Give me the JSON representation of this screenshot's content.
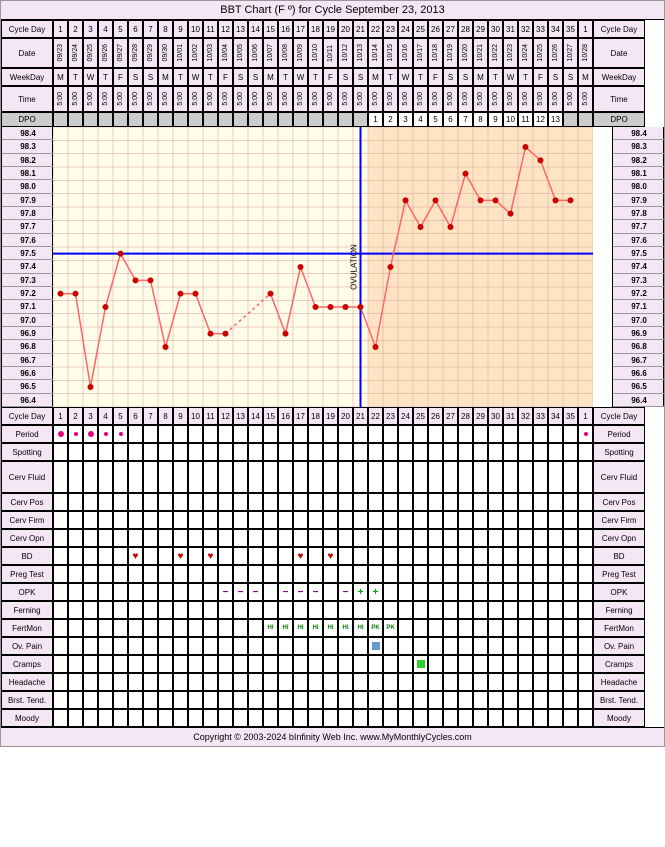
{
  "title": "BBT Chart (F º) for Cycle September 23, 2013",
  "footer": "Copyright © 2003-2024 bInfinity Web Inc.    www.MyMonthlyCycles.com",
  "labels": {
    "cycleday": "Cycle Day",
    "date": "Date",
    "weekday": "WeekDay",
    "time": "Time",
    "dpo": "DPO",
    "period": "Period",
    "spotting": "Spotting",
    "cervfluid": "Cerv Fluid",
    "cervpos": "Cerv Pos",
    "cervfirm": "Cerv Firm",
    "cervopn": "Cerv Opn",
    "bd": "BD",
    "pregtest": "Preg Test",
    "opk": "OPK",
    "ferning": "Ferning",
    "fertmon": "FertMon",
    "ovpain": "Ov. Pain",
    "cramps": "Cramps",
    "headache": "Headache",
    "brsttend": "Brst. Tend.",
    "moody": "Moody",
    "ovulation": "OVULATION"
  },
  "cycleDays": [
    1,
    2,
    3,
    4,
    5,
    6,
    7,
    8,
    9,
    10,
    11,
    12,
    13,
    14,
    15,
    16,
    17,
    18,
    19,
    20,
    21,
    22,
    23,
    24,
    25,
    26,
    27,
    28,
    29,
    30,
    31,
    32,
    33,
    34,
    35,
    1
  ],
  "dates": [
    "09/23",
    "09/24",
    "09/25",
    "09/26",
    "09/27",
    "09/28",
    "09/29",
    "09/30",
    "10/01",
    "10/02",
    "10/03",
    "10/04",
    "10/05",
    "10/06",
    "10/07",
    "10/08",
    "10/09",
    "10/10",
    "10/11",
    "10/12",
    "10/13",
    "10/14",
    "10/15",
    "10/16",
    "10/17",
    "10/18",
    "10/19",
    "10/20",
    "10/21",
    "10/22",
    "10/23",
    "10/24",
    "10/25",
    "10/26",
    "10/27",
    "10/28"
  ],
  "weekdays": [
    "M",
    "T",
    "W",
    "T",
    "F",
    "S",
    "S",
    "M",
    "T",
    "W",
    "T",
    "F",
    "S",
    "S",
    "M",
    "T",
    "W",
    "T",
    "F",
    "S",
    "S",
    "M",
    "T",
    "W",
    "T",
    "F",
    "S",
    "S",
    "M",
    "T",
    "W",
    "T",
    "F",
    "S",
    "S",
    "M"
  ],
  "times": [
    "5:00",
    "5:00",
    "5:00",
    "5:00",
    "5:00",
    "5:00",
    "5:00",
    "5:00",
    "5:00",
    "5:00",
    "5:00",
    "5:00",
    "5:00",
    "5:00",
    "5:00",
    "5:00",
    "5:00",
    "5:00",
    "5:00",
    "5:00",
    "5:00",
    "5:00",
    "5:00",
    "5:00",
    "5:00",
    "5:00",
    "5:00",
    "5:00",
    "5:00",
    "5:00",
    "5:00",
    "5:00",
    "5:00",
    "5:00",
    "5:00",
    "5:00"
  ],
  "dpo": [
    "",
    "",
    "",
    "",
    "",
    "",
    "",
    "",
    "",
    "",
    "",
    "",
    "",
    "",
    "",
    "",
    "",
    "",
    "",
    "",
    "",
    "1",
    "2",
    "3",
    "4",
    "5",
    "6",
    "7",
    "8",
    "9",
    "10",
    "11",
    "12",
    "13",
    "",
    ""
  ],
  "chart": {
    "ylabels": [
      98.4,
      98.3,
      98.2,
      98.1,
      98.0,
      97.9,
      97.8,
      97.7,
      97.6,
      97.5,
      97.4,
      97.3,
      97.2,
      97.1,
      97.0,
      96.9,
      96.8,
      96.7,
      96.6,
      96.5,
      96.4
    ],
    "ymin": 96.4,
    "ymax": 98.4,
    "coverline": 97.5,
    "ovulation_day": 21,
    "luteal_start_day": 22,
    "bg_follicular": "#fffce8",
    "bg_luteal": "#ffe4c4",
    "line_color": "#ff6666",
    "point_color": "#cc0000",
    "coverline_color": "#0000ff",
    "ov_line_color": "#0000ff",
    "grid_color": "#d4a0a0",
    "temps": [
      97.2,
      97.2,
      96.5,
      97.1,
      97.5,
      97.3,
      97.3,
      96.8,
      97.2,
      97.2,
      96.9,
      96.9,
      null,
      null,
      97.2,
      96.9,
      97.4,
      97.1,
      97.1,
      97.1,
      97.1,
      96.8,
      97.4,
      97.9,
      97.7,
      97.9,
      97.7,
      98.1,
      97.9,
      97.9,
      97.8,
      98.3,
      98.2,
      97.9,
      97.9,
      null
    ]
  },
  "period": [
    1,
    0.5,
    1,
    0.5,
    0.5,
    0,
    0,
    0,
    0,
    0,
    0,
    0,
    0,
    0,
    0,
    0,
    0,
    0,
    0,
    0,
    0,
    0,
    0,
    0,
    0,
    0,
    0,
    0,
    0,
    0,
    0,
    0,
    0,
    0,
    0,
    0.5
  ],
  "bd": [
    0,
    0,
    0,
    0,
    0,
    1,
    0,
    0,
    1,
    0,
    1,
    0,
    0,
    0,
    0,
    0,
    1,
    0,
    1,
    0,
    0,
    0,
    0,
    0,
    0,
    0,
    0,
    0,
    0,
    0,
    0,
    0,
    0,
    0,
    0,
    0
  ],
  "opk": [
    "",
    "",
    "",
    "",
    "",
    "",
    "",
    "",
    "",
    "",
    "",
    "-",
    "-",
    "-",
    "",
    "-",
    "-",
    "-",
    "",
    "-",
    "+",
    "+",
    "",
    "",
    "",
    "",
    "",
    "",
    "",
    "",
    "",
    "",
    "",
    "",
    "",
    ""
  ],
  "fertmon": [
    "",
    "",
    "",
    "",
    "",
    "",
    "",
    "",
    "",
    "",
    "",
    "",
    "",
    "",
    "HI",
    "HI",
    "HI",
    "HI",
    "HI",
    "HI",
    "HI",
    "PK",
    "PK",
    "",
    "",
    "",
    "",
    "",
    "",
    "",
    "",
    "",
    "",
    "",
    "",
    ""
  ],
  "ovpain_day": 22,
  "cramps_day": 25
}
